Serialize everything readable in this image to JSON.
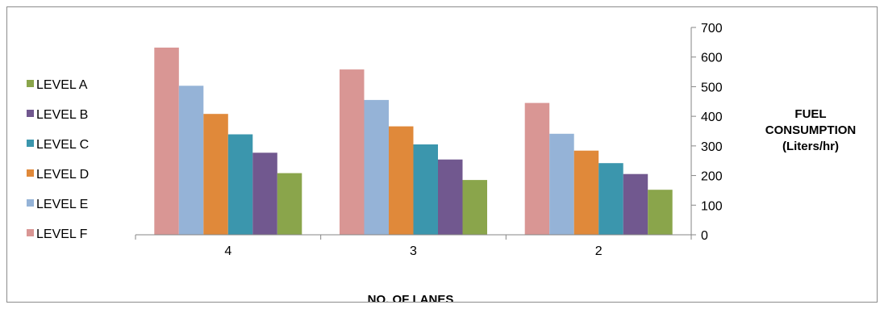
{
  "chart_data": {
    "type": "bar",
    "categories": [
      "4",
      "3",
      "2"
    ],
    "series": [
      {
        "name": "LEVEL F",
        "color": "#d99694",
        "values": [
          632,
          558,
          445
        ]
      },
      {
        "name": "LEVEL E",
        "color": "#95b3d7",
        "values": [
          503,
          455,
          341
        ]
      },
      {
        "name": "LEVEL D",
        "color": "#e0893a",
        "values": [
          408,
          366,
          284
        ]
      },
      {
        "name": "LEVEL C",
        "color": "#3b96ad",
        "values": [
          339,
          305,
          242
        ]
      },
      {
        "name": "LEVEL B",
        "color": "#71588f",
        "values": [
          277,
          254,
          205
        ]
      },
      {
        "name": "LEVEL A",
        "color": "#8aa54b",
        "values": [
          208,
          185,
          152
        ]
      }
    ],
    "legend_order": [
      "LEVEL A",
      "LEVEL B",
      "LEVEL C",
      "LEVEL D",
      "LEVEL E",
      "LEVEL F"
    ],
    "xlabel": "NO. OF LANES",
    "ylabel": [
      "FUEL",
      "CONSUMPTION",
      "(Liters/hr)"
    ],
    "ylim": [
      0,
      700
    ],
    "yticks": [
      "0",
      "100",
      "200",
      "300",
      "400",
      "500",
      "600",
      "700"
    ],
    "y_axis_side": "right",
    "legend_position": "left",
    "grid": false
  }
}
